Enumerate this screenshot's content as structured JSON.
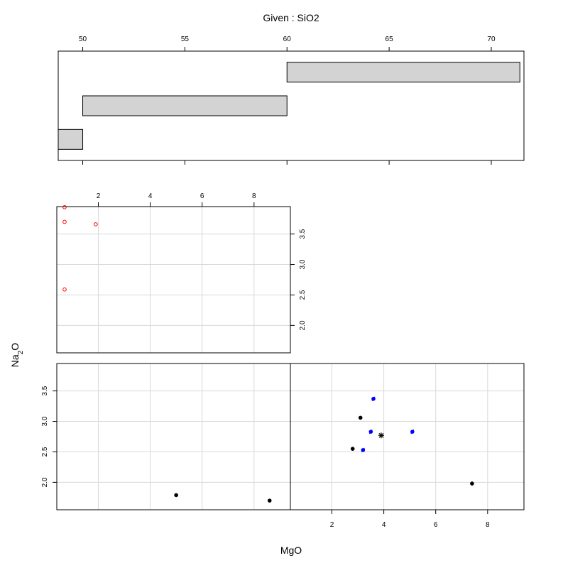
{
  "chart_data": {
    "type": "scatter",
    "title": "Given : SiO2",
    "xlabel": "MgO",
    "ylabel": "Na2O",
    "given": {
      "variable": "SiO2",
      "xlim": [
        48.8,
        71.6
      ],
      "ticks": [
        "50",
        "55",
        "60",
        "65",
        "70"
      ],
      "intervals": [
        [
          48.8,
          50.0
        ],
        [
          50.0,
          60.0
        ],
        [
          60.0,
          71.4
        ]
      ],
      "fill_color": "#d3d3d3"
    },
    "panels": [
      {
        "position": "top-left",
        "given_interval": 1,
        "xlim": [
          0.4,
          9.4
        ],
        "ylim": [
          1.55,
          3.95
        ],
        "marker_color": "#ff0000",
        "marker": "open-circle",
        "x_ticks": [
          "2",
          "4",
          "6",
          "8"
        ],
        "y_ticks": [
          "2.0",
          "2.5",
          "3.0",
          "3.5"
        ],
        "points": [
          [
            0.7,
            3.94
          ],
          [
            0.7,
            3.7
          ],
          [
            1.9,
            3.66
          ],
          [
            0.7,
            2.59
          ]
        ]
      },
      {
        "position": "bottom-left",
        "given_interval": 2,
        "xlim": [
          0.4,
          9.4
        ],
        "ylim": [
          1.55,
          3.95
        ],
        "marker_color": "#000000",
        "marker": "filled-circle",
        "y_ticks": [
          "2.0",
          "2.5",
          "3.0",
          "3.5"
        ],
        "points": [
          [
            5.0,
            1.79
          ],
          [
            8.6,
            1.7
          ]
        ]
      },
      {
        "position": "bottom-right",
        "given_interval": 3,
        "xlim": [
          0.4,
          9.4
        ],
        "ylim": [
          1.55,
          3.95
        ],
        "x_ticks": [
          "2",
          "4",
          "6",
          "8"
        ],
        "black_points": [
          [
            3.1,
            3.06
          ],
          [
            2.8,
            2.55
          ],
          [
            7.4,
            1.98
          ]
        ],
        "blue_points": [
          [
            3.6,
            3.37
          ],
          [
            3.5,
            2.83
          ],
          [
            5.1,
            2.83
          ],
          [
            3.2,
            2.53
          ]
        ],
        "blue_color": "#0000ff",
        "star_point": [
          3.9,
          2.77
        ]
      }
    ],
    "grid": true,
    "grid_color": "#d9d9d9"
  }
}
